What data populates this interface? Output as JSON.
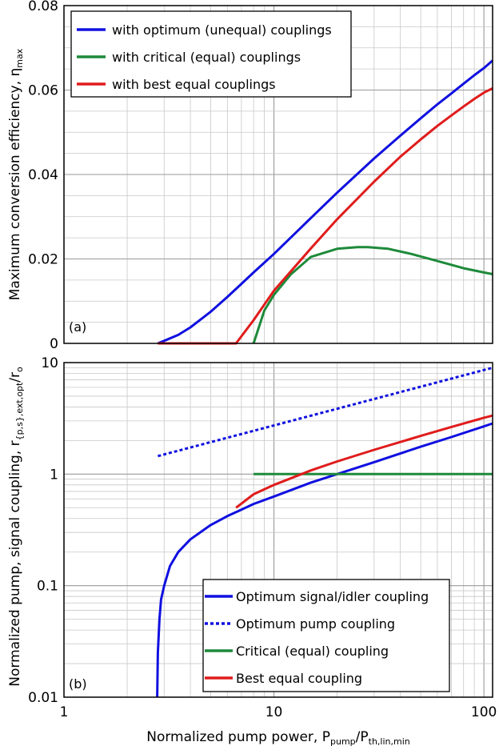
{
  "chart_data": [
    {
      "type": "line",
      "panel_label": "(a)",
      "ylabel": "Maximum conversion efficiency, η",
      "ylabel_sub": "max",
      "xscale": "log",
      "xlim": [
        1,
        110
      ],
      "ylim": [
        0,
        0.08
      ],
      "yticks": [
        "0.08",
        "0.06",
        "0.04",
        "0.02",
        "0"
      ],
      "ytick_values": [
        0.08,
        0.06,
        0.04,
        0.02,
        0
      ],
      "grid": true,
      "legend_position": "top-left",
      "series": [
        {
          "name": "with optimum (unequal) couplings",
          "color": "#1010e0",
          "style": "solid",
          "x": [
            2.8,
            3.0,
            3.5,
            4,
            5,
            6,
            7,
            8,
            10,
            15,
            20,
            30,
            40,
            50,
            60,
            70,
            80,
            90,
            100,
            110
          ],
          "y": [
            0,
            0.0006,
            0.002,
            0.0038,
            0.0075,
            0.011,
            0.0141,
            0.0168,
            0.0212,
            0.0297,
            0.0357,
            0.0438,
            0.0492,
            0.0533,
            0.0566,
            0.0592,
            0.0615,
            0.0635,
            0.0652,
            0.067
          ]
        },
        {
          "name": "with critical (equal) couplings",
          "color": "#1e8a3a",
          "style": "solid",
          "x": [
            8,
            9,
            10,
            12,
            15,
            20,
            25,
            28,
            35,
            45,
            60,
            80,
            100,
            110
          ],
          "y": [
            0,
            0.0078,
            0.0115,
            0.0163,
            0.0205,
            0.0224,
            0.0228,
            0.0228,
            0.0224,
            0.0212,
            0.0195,
            0.0178,
            0.0168,
            0.0164
          ]
        },
        {
          "name": "with best equal couplings",
          "color": "#e01c1c",
          "style": "solid",
          "x": [
            2.8,
            6.6,
            8,
            10,
            15,
            20,
            30,
            40,
            50,
            60,
            70,
            80,
            90,
            100,
            110
          ],
          "y": [
            0,
            0,
            0.0055,
            0.0125,
            0.0225,
            0.0294,
            0.0383,
            0.0442,
            0.0483,
            0.0515,
            0.054,
            0.0561,
            0.0579,
            0.0594,
            0.0604
          ]
        }
      ]
    },
    {
      "type": "line",
      "panel_label": "(b)",
      "ylabel": "Normalized pump, signal coupling, r",
      "ylabel_sub": "{p,s},ext,opt",
      "ylabel_tail": "/r",
      "ylabel_tail_sub": "o",
      "xlabel": "Normalized pump power, P",
      "xlabel_sub1": "pump",
      "xlabel_mid": "/P",
      "xlabel_sub2": "th,lin,min",
      "xscale": "log",
      "yscale": "log",
      "xlim": [
        1,
        110
      ],
      "ylim": [
        0.01,
        10
      ],
      "xticks": [
        "1",
        "10",
        "100"
      ],
      "xtick_values": [
        1,
        10,
        100
      ],
      "yticks": [
        "10",
        "1",
        "0.1",
        "0.01"
      ],
      "ytick_values": [
        10,
        1,
        0.1,
        0.01
      ],
      "grid": true,
      "legend_position": "bottom-right",
      "series": [
        {
          "name": "Optimum signal/idler coupling",
          "color": "#1010e0",
          "style": "solid",
          "x": [
            2.78,
            2.8,
            2.85,
            2.9,
            3.0,
            3.2,
            3.5,
            4,
            5,
            6,
            7,
            8,
            10,
            15,
            20,
            30,
            50,
            70,
            100,
            110
          ],
          "y": [
            0.01,
            0.025,
            0.05,
            0.075,
            0.1,
            0.15,
            0.2,
            0.26,
            0.35,
            0.42,
            0.48,
            0.54,
            0.63,
            0.84,
            1.0,
            1.28,
            1.76,
            2.15,
            2.68,
            2.85
          ]
        },
        {
          "name": "Optimum pump coupling",
          "color": "#1010e0",
          "style": "dashed",
          "x": [
            2.8,
            110
          ],
          "y": [
            1.45,
            9.0
          ]
        },
        {
          "name": "Critical (equal) coupling",
          "color": "#1e8a3a",
          "style": "solid",
          "x": [
            8,
            110
          ],
          "y": [
            1,
            1
          ]
        },
        {
          "name": "Best equal coupling",
          "color": "#e01c1c",
          "style": "solid",
          "x": [
            6.6,
            8,
            10,
            15,
            20,
            30,
            50,
            70,
            100,
            110
          ],
          "y": [
            0.5,
            0.66,
            0.8,
            1.08,
            1.3,
            1.65,
            2.2,
            2.65,
            3.2,
            3.35
          ]
        }
      ]
    }
  ]
}
